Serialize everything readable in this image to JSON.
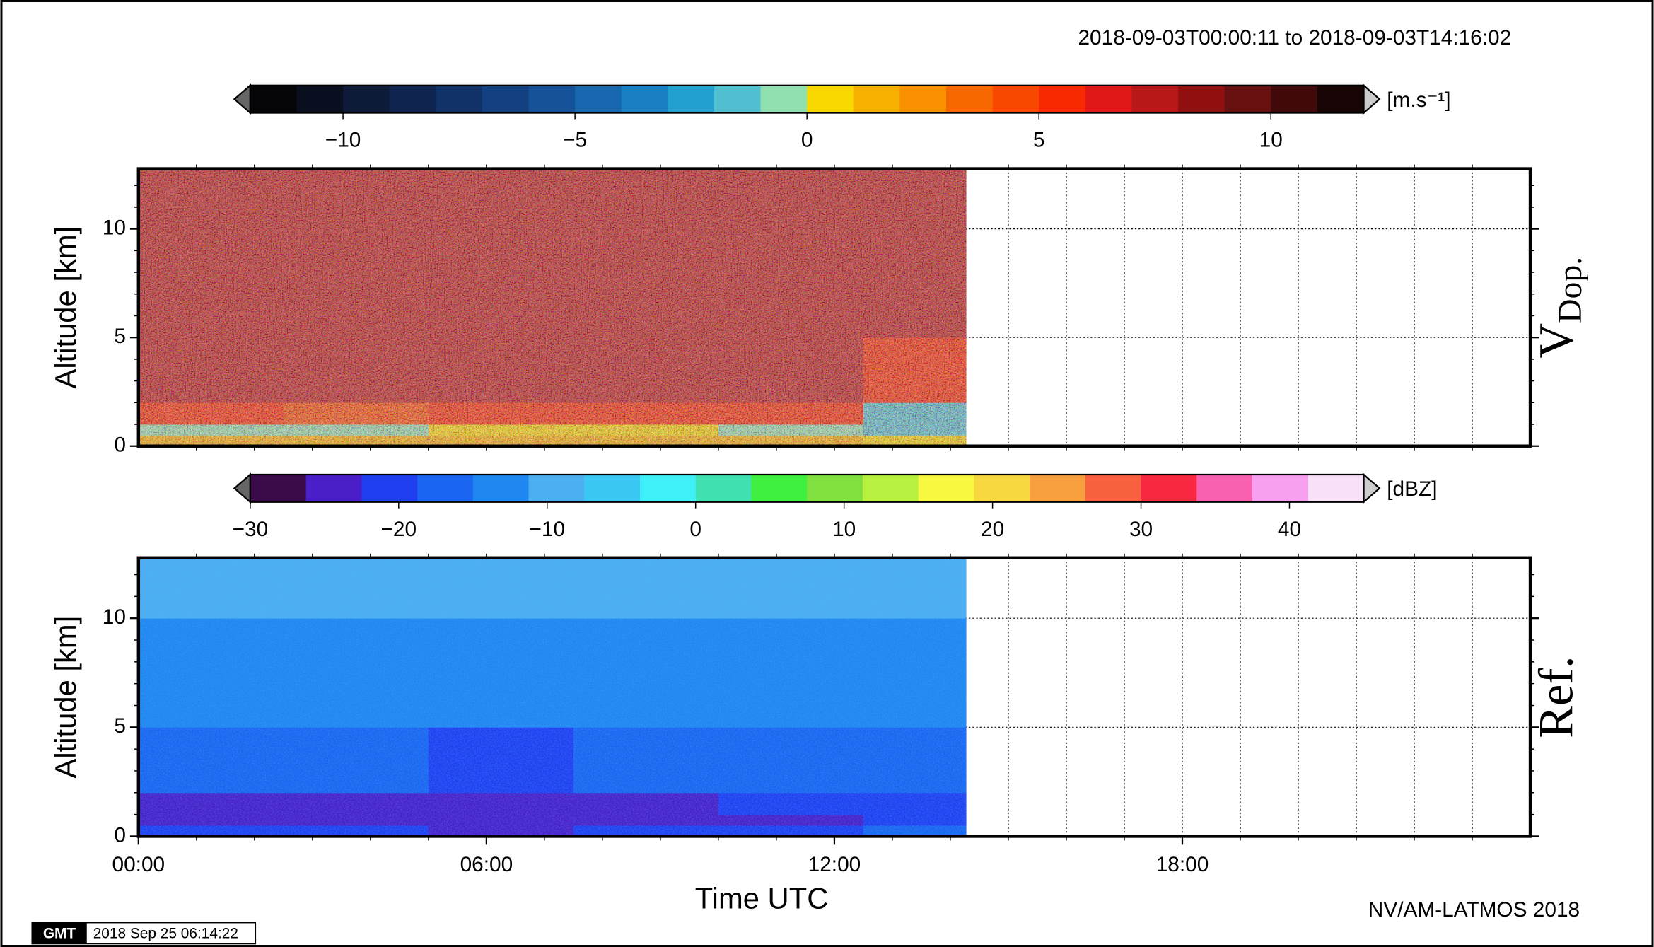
{
  "header": "2018-09-03T00:00:11 to 2018-09-03T14:16:02",
  "footer": "NV/AM-LATMOS 2018",
  "stamp": {
    "logo": "GMT",
    "text": "2018 Sep 25 06:14:22"
  },
  "chart_data": [
    {
      "type": "heatmap",
      "ylabel": "Altitude [km]",
      "panel_label": "V",
      "panel_label_sub": "Dop.",
      "xlim": [
        0,
        24
      ],
      "ylim": [
        0,
        12.77
      ],
      "yticks": [
        0,
        5,
        10
      ],
      "y_minor_ticks": [
        1,
        2,
        3,
        4,
        6,
        7,
        8,
        9,
        11,
        12
      ],
      "ygrid": [
        5,
        10
      ],
      "xgrid": [
        1,
        2,
        3,
        4,
        5,
        6,
        7,
        8,
        9,
        10,
        11,
        12,
        13,
        14,
        15,
        16,
        17,
        18,
        19,
        20,
        21,
        22,
        23
      ],
      "grid": true,
      "x_edges": [
        0,
        2.5,
        5,
        7.5,
        10,
        12.5,
        14.27
      ],
      "y_edges": [
        0,
        0.5,
        1,
        2,
        5,
        10,
        12.77
      ],
      "z": [
        [
          1,
          1,
          1,
          1,
          1,
          0.5
        ],
        [
          -1,
          -1,
          0,
          0,
          -1,
          -2
        ],
        [
          5,
          4,
          5,
          5,
          5,
          -2
        ],
        [
          7,
          7,
          7,
          7,
          7,
          5
        ],
        [
          7,
          7,
          7,
          7,
          7,
          7
        ],
        [
          7,
          7,
          7,
          7,
          7,
          7
        ]
      ],
      "colorbar": {
        "unit": "[m.s⁻¹]",
        "clim": [
          -12,
          12
        ],
        "colors": [
          "#050508",
          "#0a0f20",
          "#0d1a38",
          "#0f2550",
          "#103268",
          "#124080",
          "#15529a",
          "#1868b0",
          "#1a80c4",
          "#22a0d0",
          "#50c0d0",
          "#90e0b0",
          "#f8d800",
          "#f8b000",
          "#f89000",
          "#f86800",
          "#f84800",
          "#f82800",
          "#e01818",
          "#b81818",
          "#901010",
          "#681010",
          "#400a0a",
          "#180505"
        ],
        "ticks": [
          {
            "value": -10,
            "label": "−10"
          },
          {
            "value": -5,
            "label": "−5"
          },
          0,
          5,
          10
        ]
      }
    },
    {
      "type": "heatmap",
      "ylabel": "Altitude [km]",
      "xlabel": "Time UTC",
      "panel_label": "Ref.",
      "xlim": [
        0,
        24
      ],
      "ylim": [
        0,
        12.77
      ],
      "yticks": [
        0,
        5,
        10
      ],
      "y_minor_ticks": [
        1,
        2,
        3,
        4,
        6,
        7,
        8,
        9,
        11,
        12
      ],
      "ygrid": [
        5,
        10
      ],
      "xgrid": [
        1,
        2,
        3,
        4,
        5,
        6,
        7,
        8,
        9,
        10,
        11,
        12,
        13,
        14,
        15,
        16,
        17,
        18,
        19,
        20,
        21,
        22,
        23
      ],
      "xticks": [
        {
          "value": 0,
          "label": "00:00"
        },
        {
          "value": 6,
          "label": "06:00"
        },
        {
          "value": 12,
          "label": "12:00"
        },
        {
          "value": 18,
          "label": "18:00"
        }
      ],
      "grid": true,
      "x_edges": [
        0,
        2.5,
        5,
        7.5,
        10,
        12.5,
        14.27
      ],
      "y_edges": [
        0,
        0.5,
        1,
        2,
        5,
        10,
        12.77
      ],
      "z": [
        [
          -20,
          -20,
          -24,
          -22,
          -20,
          -18
        ],
        [
          -24,
          -24,
          -25,
          -24,
          -24,
          -22
        ],
        [
          -23,
          -23,
          -24,
          -23,
          -22,
          -20
        ],
        [
          -18,
          -18,
          -19,
          -18,
          -17,
          -16
        ],
        [
          -13,
          -13,
          -13,
          -13,
          -13,
          -13
        ],
        [
          -10,
          -10,
          -10,
          -10,
          -10,
          -10
        ]
      ],
      "colorbar": {
        "unit": "[dBZ]",
        "clim": [
          -30,
          45
        ],
        "colors": [
          "#3a0a4a",
          "#4a1fc8",
          "#1f3ff0",
          "#1a66f0",
          "#1f88f0",
          "#4cb0f0",
          "#3cc8f5",
          "#40f0f8",
          "#40e0b0",
          "#40f040",
          "#80e040",
          "#b8f040",
          "#f8f840",
          "#f8d840",
          "#f8a040",
          "#f86040",
          "#f82840",
          "#f860b0",
          "#f8a0f0",
          "#f8e0f8"
        ],
        "ticks": [
          {
            "value": -30,
            "label": "−30"
          },
          {
            "value": -20,
            "label": "−20"
          },
          {
            "value": -10,
            "label": "−10"
          },
          0,
          10,
          20,
          30,
          40
        ]
      }
    }
  ]
}
